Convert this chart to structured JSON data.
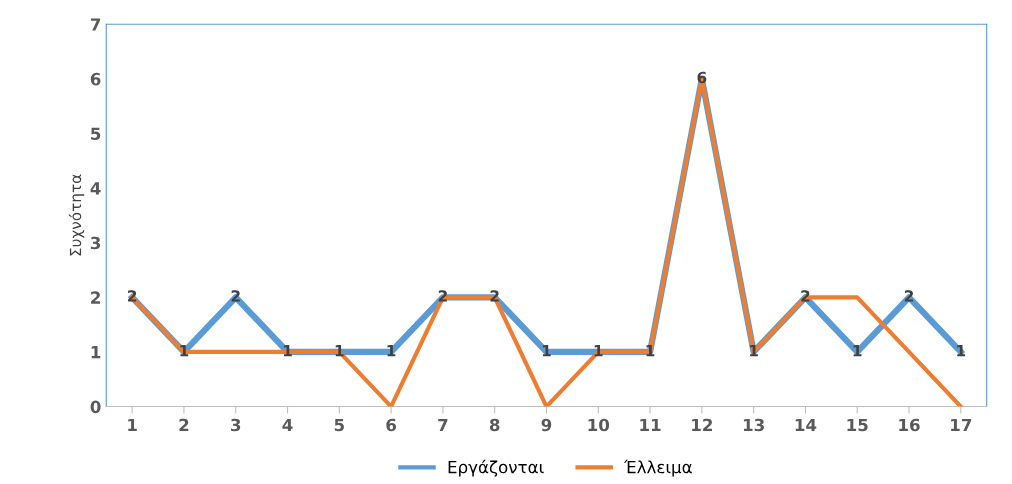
{
  "chart_data": {
    "type": "line",
    "ylabel": "Συχνότητα",
    "categories": [
      "1",
      "2",
      "3",
      "4",
      "5",
      "6",
      "7",
      "8",
      "9",
      "10",
      "11",
      "12",
      "13",
      "14",
      "15",
      "16",
      "17"
    ],
    "series": [
      {
        "name": "Εργάζονται",
        "color": "#5b9bd5",
        "values": [
          2,
          1,
          2,
          1,
          1,
          1,
          2,
          2,
          1,
          1,
          1,
          6,
          1,
          2,
          1,
          2,
          1
        ],
        "value_labels": [
          "2",
          "1",
          "2",
          "1",
          "1",
          "1",
          "2",
          "2",
          "1",
          "1",
          "1",
          "6",
          "1",
          "2",
          "1",
          "2",
          "1"
        ]
      },
      {
        "name": "Έλλειμα",
        "color": "#ed7d31",
        "values": [
          2,
          1,
          1,
          1,
          1,
          0,
          2,
          2,
          0,
          1,
          1,
          6,
          1,
          2,
          2,
          1,
          0
        ]
      }
    ],
    "ylim": [
      0,
      7
    ],
    "yticks": [
      0,
      1,
      2,
      3,
      4,
      5,
      6,
      7
    ],
    "grid": false,
    "legend": "bottom",
    "marker": "none",
    "line_style": "solid"
  }
}
